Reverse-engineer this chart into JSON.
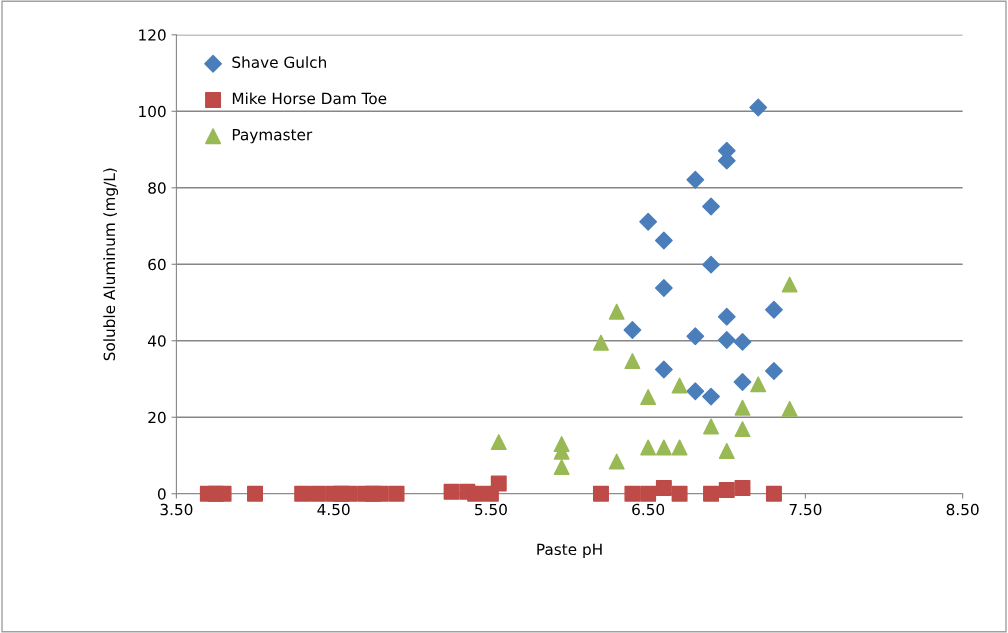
{
  "chart_data": {
    "type": "scatter",
    "xlabel": "Paste pH",
    "ylabel": "Soluble Aluminum (mg/L)",
    "xlim": [
      3.5,
      8.5
    ],
    "xticks": [
      {
        "value": 3.5,
        "label": "3.50"
      },
      {
        "value": 4.5,
        "label": "4.50"
      },
      {
        "value": 5.5,
        "label": "5.50"
      },
      {
        "value": 6.5,
        "label": "6.50"
      },
      {
        "value": 7.5,
        "label": "7.50"
      },
      {
        "value": 8.5,
        "label": "8.50"
      }
    ],
    "ylim": [
      0,
      120
    ],
    "yticks": [
      0,
      20,
      40,
      60,
      80,
      100,
      120
    ],
    "grid": "y",
    "legend": "top left",
    "series": [
      {
        "name": "Shave Gulch",
        "color": "#4a7ebb",
        "marker": "diamond",
        "x": [
          7.2,
          7.0,
          7.0,
          6.8,
          6.9,
          6.5,
          6.6,
          6.9,
          6.6,
          7.3,
          7.0,
          6.4,
          6.8,
          7.0,
          7.1,
          6.6,
          7.3,
          7.1,
          6.8,
          6.9
        ],
        "values": [
          101,
          89.7,
          87.1,
          82.1,
          75.1,
          71.1,
          66.2,
          59.9,
          53.8,
          48.1,
          46.3,
          42.8,
          41.2,
          40.2,
          39.7,
          32.5,
          32.1,
          29.2,
          26.8,
          25.4
        ]
      },
      {
        "name": "Mike Horse Dam Toe",
        "color": "#be4b48",
        "marker": "square",
        "x": [
          3.7,
          3.75,
          3.8,
          4.0,
          4.3,
          4.4,
          4.5,
          4.55,
          4.6,
          4.7,
          4.75,
          4.8,
          4.9,
          5.25,
          5.35,
          5.4,
          5.5,
          5.55,
          6.2,
          6.4,
          6.5,
          6.6,
          6.7,
          6.9,
          7.0,
          7.1,
          7.3
        ],
        "values": [
          0,
          0,
          0,
          0,
          0,
          0,
          0,
          0,
          0,
          0,
          0,
          0,
          0,
          0.5,
          0.5,
          0,
          0,
          2.7,
          0,
          0,
          0,
          1.5,
          0,
          0,
          1,
          1.5,
          0
        ]
      },
      {
        "name": "Paymaster",
        "color": "#98b954",
        "marker": "triangle",
        "x": [
          7.4,
          6.3,
          6.2,
          6.4,
          6.7,
          7.2,
          6.5,
          7.1,
          7.4,
          6.9,
          7.1,
          7.0,
          6.5,
          6.6,
          6.7,
          6.3,
          5.55,
          5.95,
          5.95,
          5.95
        ],
        "values": [
          54.7,
          47.6,
          39.5,
          34.7,
          28.3,
          28.6,
          25.3,
          22.5,
          22.2,
          17.6,
          16.9,
          11.2,
          12.1,
          12.1,
          12.1,
          8.4,
          13.5,
          13,
          11,
          7
        ]
      }
    ]
  }
}
